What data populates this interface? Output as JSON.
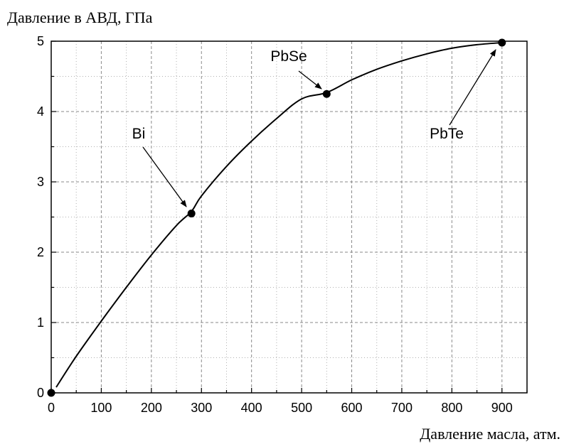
{
  "chart_data": {
    "type": "line",
    "ylabel": "Давление в АВД, ГПа",
    "xlabel": "Давление масла, атм.",
    "xlim": [
      0,
      950
    ],
    "ylim": [
      0,
      5
    ],
    "grid": true,
    "x_ticks": [
      0,
      100,
      200,
      300,
      400,
      500,
      600,
      700,
      800,
      900
    ],
    "y_ticks": [
      0,
      1,
      2,
      3,
      4,
      5
    ],
    "x_tick_labels": [
      "0",
      "100",
      "200",
      "300",
      "400",
      "500",
      "600",
      "700",
      "800",
      "900"
    ],
    "y_tick_labels": [
      "0",
      "1",
      "2",
      "3",
      "4",
      "5"
    ],
    "series": [
      {
        "x": [
          10,
          50,
          100,
          150,
          200,
          250,
          280,
          300,
          350,
          400,
          450,
          500,
          550,
          600,
          650,
          700,
          750,
          800,
          850,
          900
        ],
        "y": [
          0.08,
          0.52,
          1.02,
          1.5,
          1.96,
          2.38,
          2.58,
          2.8,
          3.22,
          3.58,
          3.9,
          4.18,
          4.27,
          4.45,
          4.6,
          4.72,
          4.82,
          4.9,
          4.95,
          4.98
        ]
      }
    ],
    "points": [
      {
        "label": "",
        "x": 0,
        "y": 0
      },
      {
        "label": "Bi",
        "x": 280,
        "y": 2.55
      },
      {
        "label": "PbSe",
        "x": 550,
        "y": 4.25
      },
      {
        "label": "PbTe",
        "x": 900,
        "y": 4.98
      }
    ]
  }
}
